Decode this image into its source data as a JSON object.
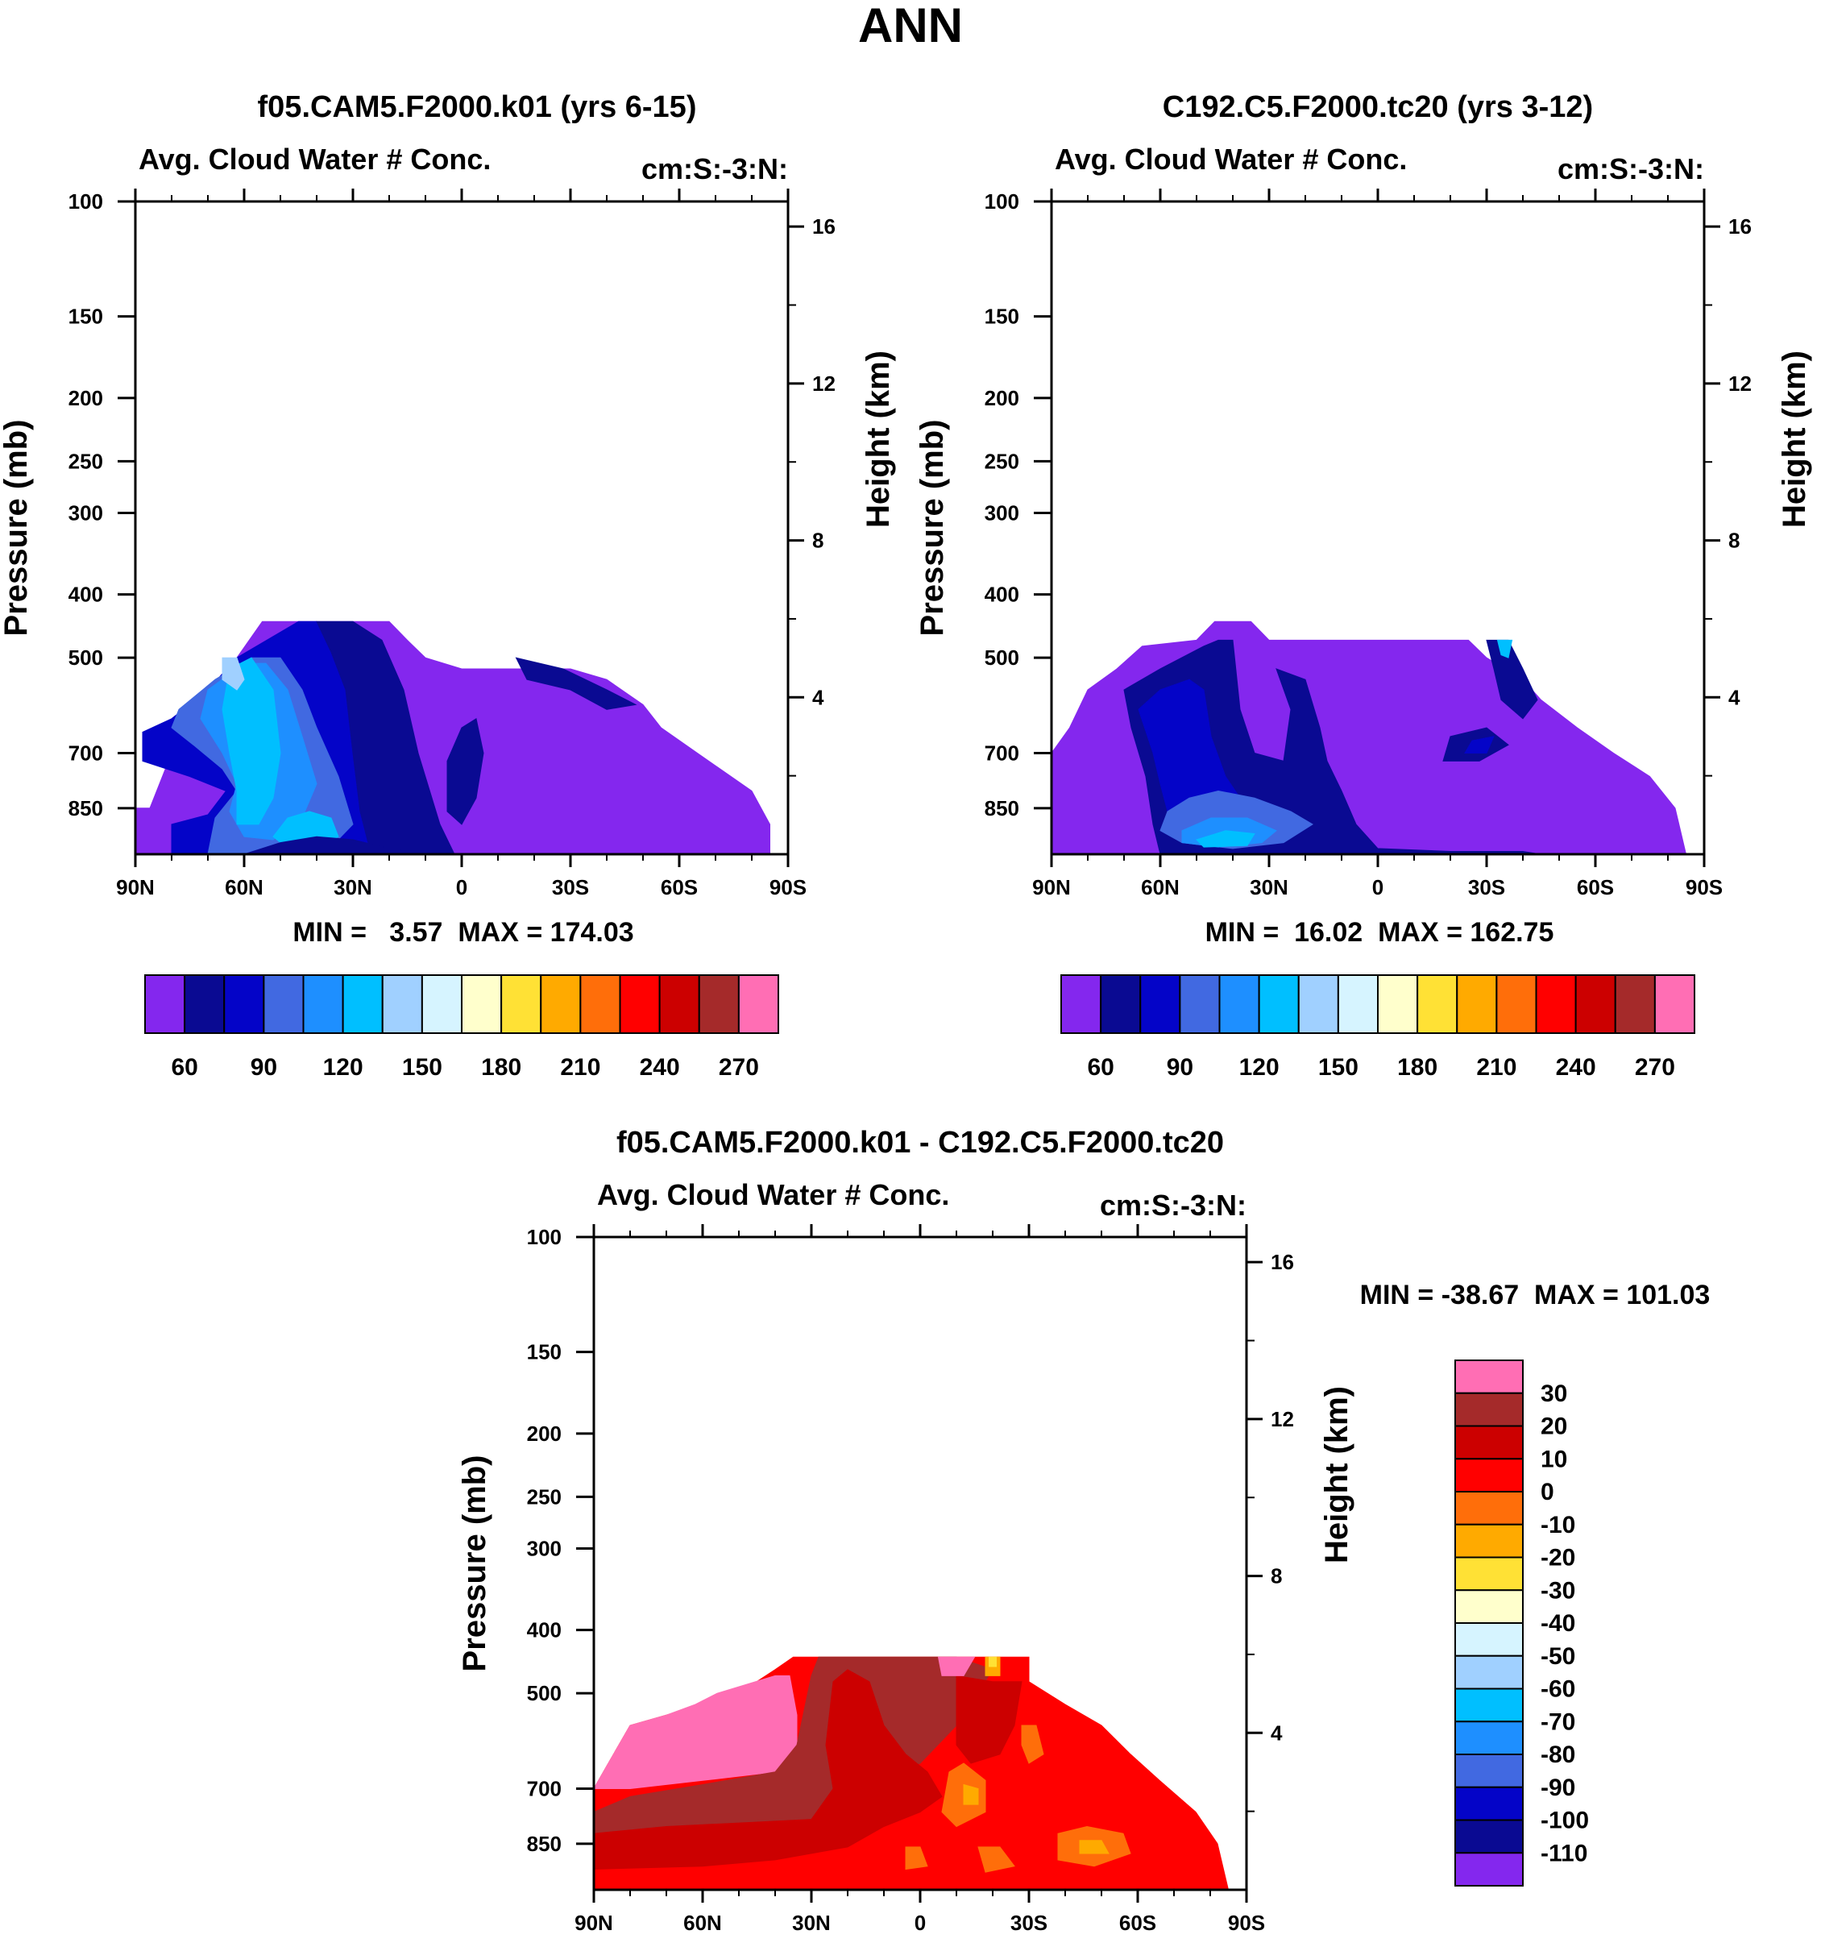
{
  "figure_title": "ANN",
  "chart_data": [
    {
      "id": "panel-a",
      "type": "contour",
      "title": "f05.CAM5.F2000.k01 (yrs 6-15)",
      "subtitle_left": "Avg. Cloud Water # Conc.",
      "subtitle_right": "cm:S:-3:N:",
      "ylabel": "Pressure (mb)",
      "y2label": "Height (km)",
      "x_ticks": [
        "90N",
        "60N",
        "30N",
        "0",
        "30S",
        "60S",
        "90S"
      ],
      "x_values": [
        90,
        60,
        30,
        0,
        -30,
        -60,
        -90
      ],
      "y_ticks": [
        100,
        150,
        200,
        250,
        300,
        400,
        500,
        700,
        850
      ],
      "y2_ticks": [
        16,
        12,
        8,
        4
      ],
      "ylim": [
        1000,
        100
      ],
      "min_label": "MIN =   3.57  MAX = 174.03",
      "min": 3.57,
      "max": 174.03,
      "colorbar": {
        "orientation": "horizontal",
        "colors": [
          "#8427ee",
          "#0a0a92",
          "#0404c8",
          "#4169e1",
          "#1e8fff",
          "#00bfff",
          "#a0d0ff",
          "#d6f4ff",
          "#ffffcc",
          "#ffe135",
          "#ffaa00",
          "#ff6e0a",
          "#ff0000",
          "#cc0000",
          "#a52a2a",
          "#ff6eb4"
        ],
        "labels": [
          "60",
          "90",
          "120",
          "150",
          "180",
          "210",
          "240",
          "270"
        ],
        "label_after_box": [
          1,
          3,
          5,
          7,
          9,
          11,
          13,
          15
        ]
      }
    },
    {
      "id": "panel-b",
      "type": "contour",
      "title": "C192.C5.F2000.tc20 (yrs 3-12)",
      "subtitle_left": "Avg. Cloud Water # Conc.",
      "subtitle_right": "cm:S:-3:N:",
      "ylabel": "Pressure (mb)",
      "y2label": "Height (km)",
      "x_ticks": [
        "90N",
        "60N",
        "30N",
        "0",
        "30S",
        "60S",
        "90S"
      ],
      "x_values": [
        90,
        60,
        30,
        0,
        -30,
        -60,
        -90
      ],
      "y_ticks": [
        100,
        150,
        200,
        250,
        300,
        400,
        500,
        700,
        850
      ],
      "y2_ticks": [
        16,
        12,
        8,
        4
      ],
      "ylim": [
        1000,
        100
      ],
      "min_label": "MIN =  16.02  MAX = 162.75",
      "min": 16.02,
      "max": 162.75,
      "colorbar": {
        "orientation": "horizontal",
        "colors": [
          "#8427ee",
          "#0a0a92",
          "#0404c8",
          "#4169e1",
          "#1e8fff",
          "#00bfff",
          "#a0d0ff",
          "#d6f4ff",
          "#ffffcc",
          "#ffe135",
          "#ffaa00",
          "#ff6e0a",
          "#ff0000",
          "#cc0000",
          "#a52a2a",
          "#ff6eb4"
        ],
        "labels": [
          "60",
          "90",
          "120",
          "150",
          "180",
          "210",
          "240",
          "270"
        ],
        "label_after_box": [
          1,
          3,
          5,
          7,
          9,
          11,
          13,
          15
        ]
      }
    },
    {
      "id": "panel-c",
      "type": "contour",
      "title": "f05.CAM5.F2000.k01 - C192.C5.F2000.tc20",
      "subtitle_left": "Avg. Cloud Water # Conc.",
      "subtitle_right": "cm:S:-3:N:",
      "ylabel": "Pressure (mb)",
      "y2label": "Height (km)",
      "x_ticks": [
        "90N",
        "60N",
        "30N",
        "0",
        "30S",
        "60S",
        "90S"
      ],
      "x_values": [
        90,
        60,
        30,
        0,
        -30,
        -60,
        -90
      ],
      "y_ticks": [
        100,
        150,
        200,
        250,
        300,
        400,
        500,
        700,
        850
      ],
      "y2_ticks": [
        16,
        12,
        8,
        4
      ],
      "ylim": [
        1000,
        100
      ],
      "min_label": "MIN = -38.67  MAX = 101.03",
      "min": -38.67,
      "max": 101.03,
      "colorbar": {
        "orientation": "vertical",
        "colors_top_to_bottom": [
          "#ff6eb4",
          "#a52a2a",
          "#cc0000",
          "#ff0000",
          "#ff6e0a",
          "#ffaa00",
          "#ffe135",
          "#ffffcc",
          "#d6f4ff",
          "#a0d0ff",
          "#00bfff",
          "#1e8fff",
          "#4169e1",
          "#0404c8",
          "#0a0a92",
          "#8427ee"
        ],
        "labels": [
          "30",
          "20",
          "10",
          "0",
          "-10",
          "-20",
          "-30",
          "-40",
          "-50",
          "-60",
          "-70",
          "-80",
          "-90",
          "-100",
          "-110"
        ]
      }
    }
  ]
}
